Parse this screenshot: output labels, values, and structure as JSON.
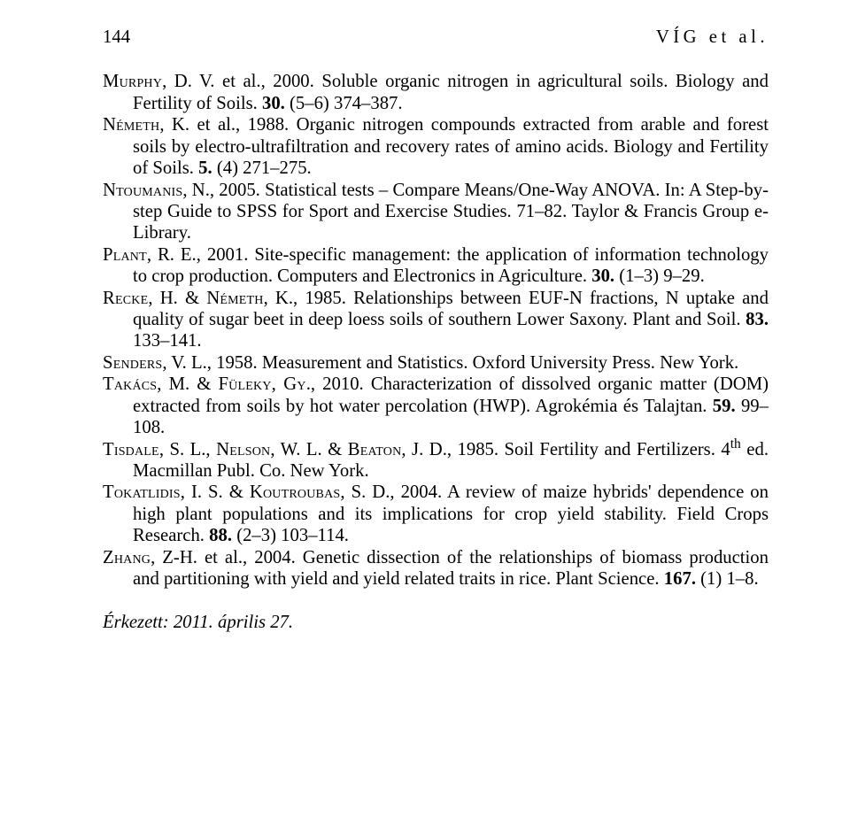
{
  "header": {
    "page_number": "144",
    "running_head": "VÍG et al."
  },
  "refs": {
    "murphy": {
      "authors": "Murphy",
      "tail": ", D. V. et al., 2000. Soluble organic nitrogen in agricultural soils. Biology and Fertility of Soils. ",
      "vol": "30.",
      "pages": " (5–6) 374–387."
    },
    "nemeth": {
      "authors": "Németh",
      "tail": ", K. et al., 1988. Organic nitrogen compounds extracted from arable and forest soils by electro-ultrafiltration and recovery rates of amino acids. Biology and Fertility of Soils. ",
      "vol": "5.",
      "pages": " (4) 271–275."
    },
    "ntoumanis": {
      "authors": "Ntoumanis",
      "tail": ", N., 2005. Statistical tests – Compare Means/One-Way ANOVA. In: A Step-by-step Guide to SPSS for Sport and Exercise Studies. 71–82. Taylor & Francis Group e-Library."
    },
    "plant": {
      "authors": "Plant",
      "tail": ", R. E., 2001. Site-specific management: the application of information technology to crop production. Computers and Electronics in Agriculture. ",
      "vol": "30.",
      "pages": " (1–3) 9–29."
    },
    "recke": {
      "a1": "Recke",
      "sep": ", H. & ",
      "a2": "Németh",
      "tail": ", K., 1985. Relationships between EUF-N fractions, N uptake and quality of sugar beet in deep loess soils of southern Lower Saxony. Plant and Soil. ",
      "vol": "83.",
      "pages": " 133–141."
    },
    "senders": {
      "authors": "Senders",
      "tail": ", V. L., 1958. Measurement and Statistics. Oxford University Press. New York."
    },
    "takacs": {
      "a1": "Takács",
      "sep": ", M. & ",
      "a2": "Füleky",
      "gy": ", Gy",
      "tail": "., 2010. Characterization of dissolved organic matter (DOM) extracted from soils by hot water percolation (HWP). Agrokémia és Talajtan. ",
      "vol": "59.",
      "pages": " 99–108."
    },
    "tisdale": {
      "a1": "Tisdale",
      "s1": ", S. L., ",
      "a2": "Nelson",
      "s2": ", W. L. & ",
      "a3": "Beaton",
      "tail1": ", J. D., 1985. Soil Fertility and Fertilizers. 4",
      "sup": "th",
      "tail2": " ed. Macmillan Publ. Co. New York."
    },
    "tokatlidis": {
      "a1": "Tokatlidis",
      "s1": ", I. S. & ",
      "a2": "Koutroubas",
      "tail": ", S. D., 2004. A review of maize hybrids' dependence on high plant populations and its implications for crop yield stability. Field Crops Research. ",
      "vol": "88.",
      "pages": " (2–3) 103–114."
    },
    "zhang": {
      "authors": "Zhang",
      "tail": ", Z-H. et al., 2004. Genetic dissection of the relationships of biomass production and partitioning with yield and yield related traits in rice. Plant Science. ",
      "vol": "167.",
      "pages": " (1) 1–8."
    }
  },
  "received": "Érkezett: 2011. április 27."
}
